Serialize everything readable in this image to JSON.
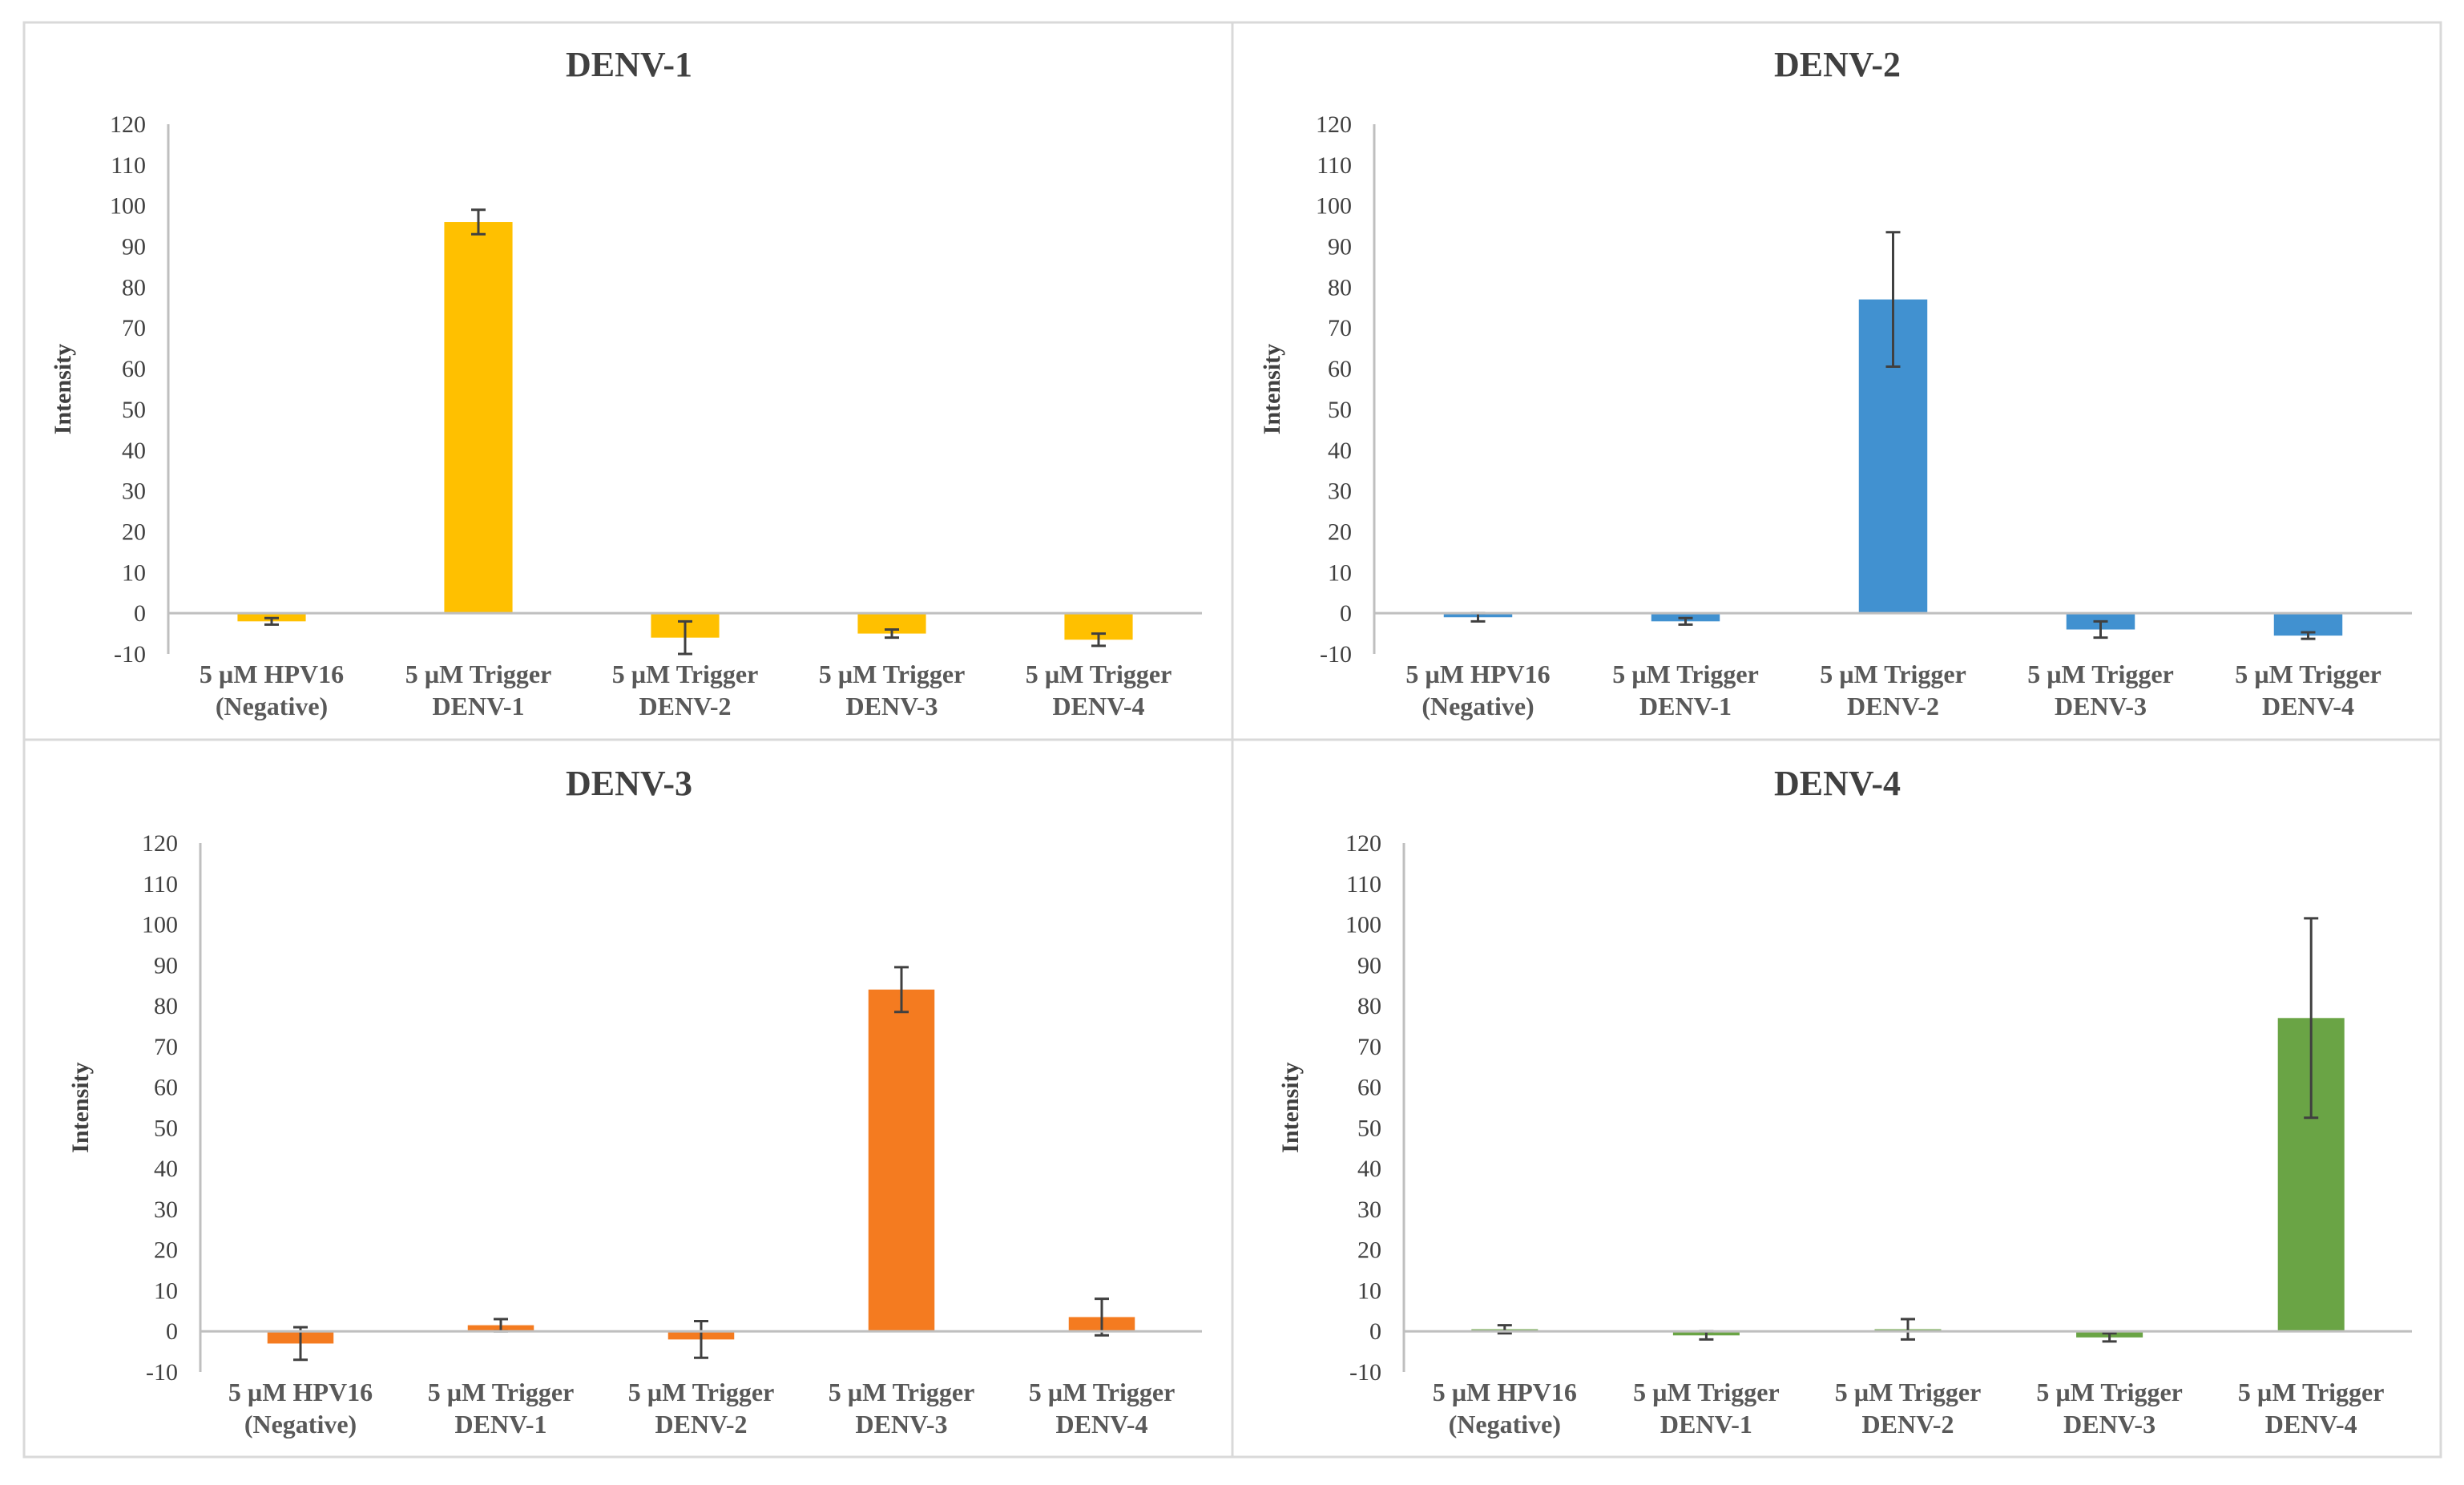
{
  "chart_data": [
    {
      "type": "bar",
      "title": "DENV-1",
      "ylabel": "Intensity",
      "xlabel": "",
      "ylim": [
        -10,
        120
      ],
      "yticks": [
        120,
        110,
        100,
        90,
        80,
        70,
        60,
        50,
        40,
        30,
        20,
        10,
        0,
        -10
      ],
      "color": "#FFC000",
      "categories": [
        [
          "5 µM HPV16",
          "(Negative)"
        ],
        [
          "5 µM Trigger",
          "DENV-1"
        ],
        [
          "5 µM Trigger",
          "DENV-2"
        ],
        [
          "5 µM Trigger",
          "DENV-3"
        ],
        [
          "5 µM Trigger",
          "DENV-4"
        ]
      ],
      "values": [
        -2,
        96,
        -6,
        -5,
        -6.5
      ],
      "errors": [
        0.8,
        3,
        4,
        1,
        1.5
      ]
    },
    {
      "type": "bar",
      "title": "DENV-2",
      "ylabel": "Intensity",
      "xlabel": "",
      "ylim": [
        -10,
        120
      ],
      "yticks": [
        120,
        110,
        100,
        90,
        80,
        70,
        60,
        50,
        40,
        30,
        20,
        10,
        0,
        -10
      ],
      "color": "#4191D0",
      "categories": [
        [
          "5 µM HPV16",
          "(Negative)"
        ],
        [
          "5 µM Trigger",
          "DENV-1"
        ],
        [
          "5 µM Trigger",
          "DENV-2"
        ],
        [
          "5 µM Trigger",
          "DENV-3"
        ],
        [
          "5 µM Trigger",
          "DENV-4"
        ]
      ],
      "values": [
        -1,
        -2,
        77,
        -4,
        -5.5
      ],
      "errors": [
        1,
        0.8,
        16.5,
        2,
        0.8
      ]
    },
    {
      "type": "bar",
      "title": "DENV-3",
      "ylabel": "Intensity",
      "xlabel": "",
      "ylim": [
        -10,
        120
      ],
      "yticks": [
        120,
        110,
        100,
        90,
        80,
        70,
        60,
        50,
        40,
        30,
        20,
        10,
        0,
        -10
      ],
      "color": "#F47B20",
      "categories": [
        [
          "5 µM HPV16",
          "(Negative)"
        ],
        [
          "5 µM Trigger",
          "DENV-1"
        ],
        [
          "5 µM Trigger",
          "DENV-2"
        ],
        [
          "5 µM Trigger",
          "DENV-3"
        ],
        [
          "5 µM Trigger",
          "DENV-4"
        ]
      ],
      "values": [
        -3,
        1.5,
        -2,
        84,
        3.5
      ],
      "errors": [
        4,
        1.5,
        4.5,
        5.5,
        4.5
      ]
    },
    {
      "type": "bar",
      "title": "DENV-4",
      "ylabel": "Intensity",
      "xlabel": "",
      "ylim": [
        -10,
        120
      ],
      "yticks": [
        120,
        110,
        100,
        90,
        80,
        70,
        60,
        50,
        40,
        30,
        20,
        10,
        0,
        -10
      ],
      "color": "#6AA445",
      "categories": [
        [
          "5 µM HPV16",
          "(Negative)"
        ],
        [
          "5 µM Trigger",
          "DENV-1"
        ],
        [
          "5 µM Trigger",
          "DENV-2"
        ],
        [
          "5 µM Trigger",
          "DENV-3"
        ],
        [
          "5 µM Trigger",
          "DENV-4"
        ]
      ],
      "values": [
        0.5,
        -1,
        0.5,
        -1.5,
        77
      ],
      "errors": [
        1,
        1,
        2.5,
        1,
        24.5
      ]
    }
  ]
}
